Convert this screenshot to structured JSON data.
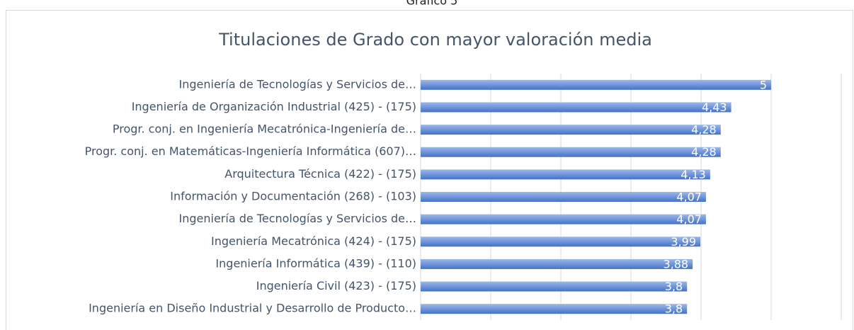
{
  "chart_data": {
    "type": "bar",
    "orientation": "horizontal",
    "caption": "Gráfico 5",
    "title": "Titulaciones de Grado con mayor valoración media",
    "categories": [
      "Ingeniería de Tecnologías y Servicios de…",
      "Ingeniería de Organización Industrial (425) - (175)",
      "Progr. conj. en Ingeniería Mecatrónica-Ingeniería de…",
      "Progr. conj. en Matemáticas-Ingeniería Informática (607)…",
      "Arquitectura Técnica (422) - (175)",
      "Información y Documentación (268) - (103)",
      "Ingeniería de Tecnologías y Servicios de…",
      "Ingeniería Mecatrónica (424) - (175)",
      "Ingeniería Informática (439) - (110)",
      "Ingeniería Civil (423) - (175)",
      "Ingeniería en Diseño Industrial y Desarrollo de Producto…"
    ],
    "values": [
      5,
      4.43,
      4.28,
      4.28,
      4.13,
      4.07,
      4.07,
      3.99,
      3.88,
      3.8,
      3.8
    ],
    "value_labels": [
      "5",
      "4,43",
      "4,28",
      "4,28",
      "4,13",
      "4,07",
      "4,07",
      "3,99",
      "3,88",
      "3,8",
      "3,8"
    ],
    "color": "#4472c4",
    "xlim": [
      0,
      6
    ],
    "xticks": [
      0,
      1,
      2,
      3,
      4,
      5,
      6
    ],
    "show_tick_labels": false,
    "grid": true
  }
}
